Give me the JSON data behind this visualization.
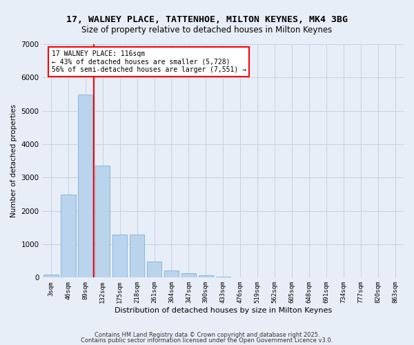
{
  "title1": "17, WALNEY PLACE, TATTENHOE, MILTON KEYNES, MK4 3BG",
  "title2": "Size of property relative to detached houses in Milton Keynes",
  "xlabel": "Distribution of detached houses by size in Milton Keynes",
  "ylabel": "Number of detached properties",
  "categories": [
    "3sqm",
    "46sqm",
    "89sqm",
    "132sqm",
    "175sqm",
    "218sqm",
    "261sqm",
    "304sqm",
    "347sqm",
    "390sqm",
    "433sqm",
    "476sqm",
    "519sqm",
    "562sqm",
    "605sqm",
    "648sqm",
    "691sqm",
    "734sqm",
    "777sqm",
    "820sqm",
    "863sqm"
  ],
  "values": [
    100,
    2500,
    5500,
    3350,
    1300,
    1300,
    480,
    210,
    130,
    60,
    30,
    10,
    5,
    3,
    2,
    1,
    0,
    0,
    0,
    0,
    0
  ],
  "bar_color": "#bad4ee",
  "bar_edge_color": "#7aafd4",
  "vline_index": 2.5,
  "vline_color": "red",
  "annotation_text": "17 WALNEY PLACE: 116sqm\n← 43% of detached houses are smaller (5,728)\n56% of semi-detached houses are larger (7,551) →",
  "ylim": [
    0,
    7000
  ],
  "yticks": [
    0,
    1000,
    2000,
    3000,
    4000,
    5000,
    6000,
    7000
  ],
  "footer1": "Contains HM Land Registry data © Crown copyright and database right 2025.",
  "footer2": "Contains public sector information licensed under the Open Government Licence v3.0.",
  "bg_color": "#e8eef8",
  "grid_color": "#c8d0e0"
}
